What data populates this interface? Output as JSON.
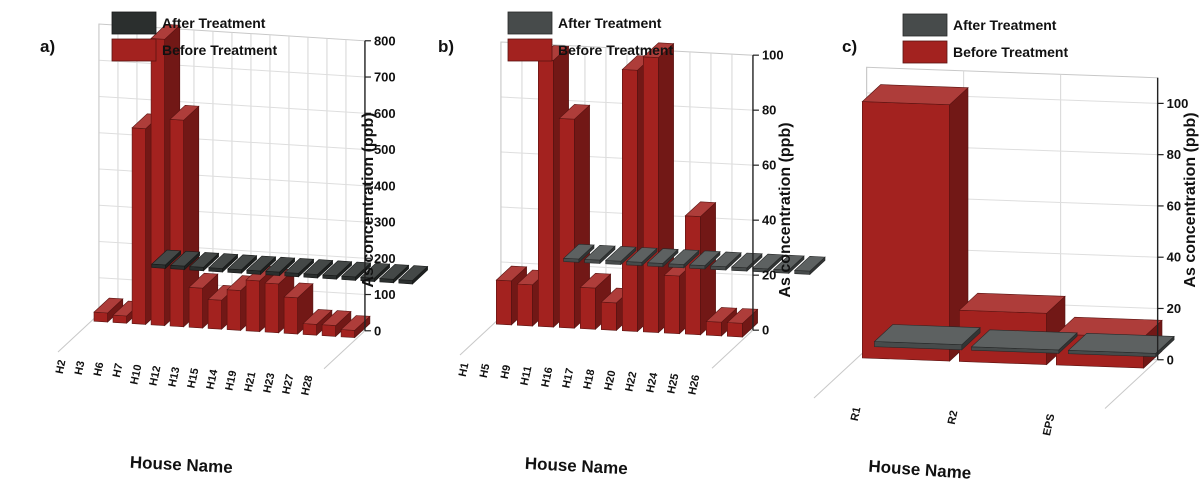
{
  "colors": {
    "before": "#a3221f",
    "after_a": "#2b2f2e",
    "after_bc": "#474b4b"
  },
  "chart_data": [
    {
      "panel": "a)",
      "type": "bar",
      "legend": [
        "After Treatment",
        "Before Treatment"
      ],
      "xlabel": "House Name",
      "ylabel": "As concentration (ppb)",
      "ylim": [
        0,
        800
      ],
      "yticks": [
        "0",
        "100",
        "200",
        "300",
        "400",
        "500",
        "600",
        "700",
        "800"
      ],
      "categories": [
        "H2",
        "H3",
        "H6",
        "H7",
        "H10",
        "H12",
        "H13",
        "H15",
        "H14",
        "H19",
        "H21",
        "H23",
        "H27",
        "H28"
      ],
      "series": [
        {
          "name": "Before Treatment",
          "values": [
            25,
            20,
            540,
            790,
            570,
            110,
            80,
            110,
            140,
            135,
            100,
            30,
            30,
            20
          ]
        },
        {
          "name": "After Treatment",
          "values": [
            0,
            0,
            0,
            0,
            0,
            0,
            0,
            0,
            0,
            0,
            0,
            0,
            0,
            0
          ]
        }
      ]
    },
    {
      "panel": "b)",
      "type": "bar",
      "legend": [
        "After Treatment",
        "Before Treatment"
      ],
      "xlabel": "House Name",
      "ylabel": "As concentration (ppb)",
      "ylim": [
        0,
        100
      ],
      "yticks": [
        "0",
        "20",
        "40",
        "60",
        "80",
        "100"
      ],
      "categories": [
        "H1",
        "H5",
        "H9",
        "H11",
        "H16",
        "H17",
        "H18",
        "H20",
        "H22",
        "H24",
        "H25",
        "H26"
      ],
      "series": [
        {
          "name": "Before Treatment",
          "values": [
            16,
            15,
            97,
            76,
            15,
            10,
            95,
            100,
            21,
            43,
            5,
            5
          ]
        },
        {
          "name": "After Treatment",
          "values": [
            0,
            0,
            0,
            0,
            0,
            0,
            0,
            0,
            0,
            0,
            0,
            0
          ]
        }
      ]
    },
    {
      "panel": "c)",
      "type": "bar",
      "legend": [
        "After Treatment",
        "Before Treatment"
      ],
      "xlabel": "House Name",
      "ylabel": "As concentration (ppb)",
      "ylim": [
        0,
        110
      ],
      "yticks": [
        "0",
        "20",
        "40",
        "60",
        "80",
        "100"
      ],
      "categories": [
        "R1",
        "R2",
        "EPS"
      ],
      "series": [
        {
          "name": "Before Treatment",
          "values": [
            100,
            20,
            12
          ]
        },
        {
          "name": "After Treatment",
          "values": [
            2,
            0,
            0
          ]
        }
      ]
    }
  ]
}
